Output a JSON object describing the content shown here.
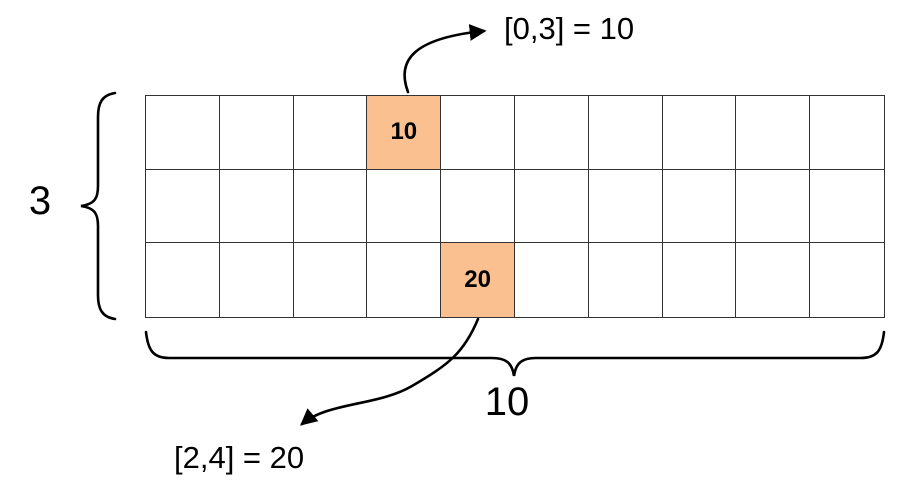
{
  "colors": {
    "highlight": "#FAC090",
    "grid_line": "#333333",
    "stroke": "#000000"
  },
  "grid": {
    "rows": 3,
    "cols": 10,
    "highlighted_cells": [
      {
        "row": 0,
        "col": 3,
        "value": "10"
      },
      {
        "row": 2,
        "col": 4,
        "value": "20"
      }
    ]
  },
  "labels": {
    "row_count": "3",
    "col_count": "10",
    "annotation_top": "[0,3] = 10",
    "annotation_bottom": "[2,4] = 20"
  }
}
